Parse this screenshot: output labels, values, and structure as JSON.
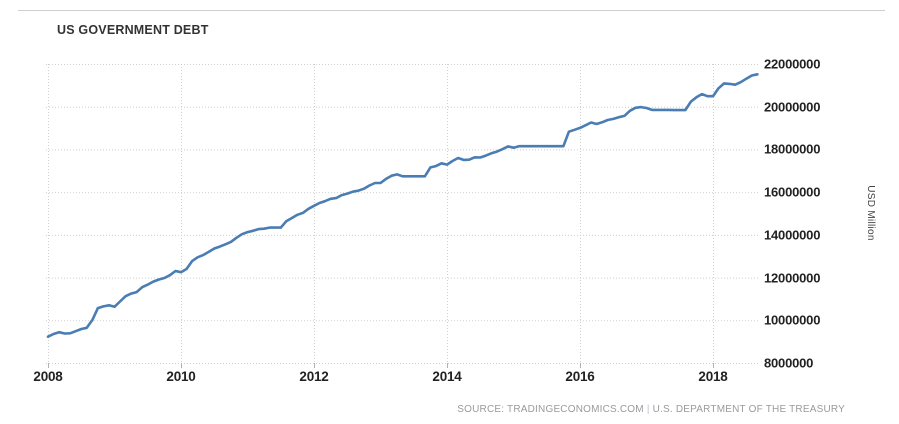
{
  "header": {
    "title": "US GOVERNMENT DEBT"
  },
  "footer": {
    "source_left": "SOURCE: TRADINGECONOMICS.COM",
    "separator": "|",
    "source_right": "U.S.  DEPARTMENT OF THE TREASURY"
  },
  "chart_data": {
    "type": "line",
    "title": "US GOVERNMENT DEBT",
    "xlabel": "",
    "ylabel": "USD Million",
    "grid": "dotted",
    "legend": "none",
    "line_color": "#4a7db3",
    "xlim": [
      2008,
      2018.72
    ],
    "ylim": [
      8000000,
      22000000
    ],
    "x_ticks": [
      2008,
      2010,
      2012,
      2014,
      2016,
      2018
    ],
    "y_ticks": [
      8000000,
      10000000,
      12000000,
      14000000,
      16000000,
      18000000,
      20000000,
      22000000
    ],
    "source": "SOURCE: TRADINGECONOMICS.COM | U.S. DEPARTMENT OF THE TREASURY",
    "series": [
      {
        "name": "US Government Debt",
        "unit": "USD Million",
        "points": [
          [
            2008.0,
            9230000
          ],
          [
            2008.083,
            9360000
          ],
          [
            2008.167,
            9440000
          ],
          [
            2008.25,
            9380000
          ],
          [
            2008.333,
            9390000
          ],
          [
            2008.417,
            9490000
          ],
          [
            2008.5,
            9590000
          ],
          [
            2008.583,
            9650000
          ],
          [
            2008.667,
            10020000
          ],
          [
            2008.75,
            10570000
          ],
          [
            2008.833,
            10650000
          ],
          [
            2008.917,
            10700000
          ],
          [
            2009.0,
            10630000
          ],
          [
            2009.083,
            10880000
          ],
          [
            2009.167,
            11130000
          ],
          [
            2009.25,
            11250000
          ],
          [
            2009.333,
            11320000
          ],
          [
            2009.417,
            11550000
          ],
          [
            2009.5,
            11670000
          ],
          [
            2009.583,
            11810000
          ],
          [
            2009.667,
            11910000
          ],
          [
            2009.75,
            11980000
          ],
          [
            2009.833,
            12110000
          ],
          [
            2009.917,
            12310000
          ],
          [
            2010.0,
            12250000
          ],
          [
            2010.083,
            12400000
          ],
          [
            2010.167,
            12770000
          ],
          [
            2010.25,
            12950000
          ],
          [
            2010.333,
            13050000
          ],
          [
            2010.417,
            13200000
          ],
          [
            2010.5,
            13360000
          ],
          [
            2010.583,
            13450000
          ],
          [
            2010.667,
            13560000
          ],
          [
            2010.75,
            13670000
          ],
          [
            2010.833,
            13860000
          ],
          [
            2010.917,
            14030000
          ],
          [
            2011.0,
            14130000
          ],
          [
            2011.083,
            14190000
          ],
          [
            2011.167,
            14270000
          ],
          [
            2011.25,
            14290000
          ],
          [
            2011.333,
            14340000
          ],
          [
            2011.417,
            14340000
          ],
          [
            2011.5,
            14340000
          ],
          [
            2011.583,
            14640000
          ],
          [
            2011.667,
            14790000
          ],
          [
            2011.75,
            14940000
          ],
          [
            2011.833,
            15030000
          ],
          [
            2011.917,
            15220000
          ],
          [
            2012.0,
            15360000
          ],
          [
            2012.083,
            15490000
          ],
          [
            2012.167,
            15580000
          ],
          [
            2012.25,
            15690000
          ],
          [
            2012.333,
            15720000
          ],
          [
            2012.417,
            15860000
          ],
          [
            2012.5,
            15930000
          ],
          [
            2012.583,
            16020000
          ],
          [
            2012.667,
            16070000
          ],
          [
            2012.75,
            16160000
          ],
          [
            2012.833,
            16310000
          ],
          [
            2012.917,
            16430000
          ],
          [
            2013.0,
            16430000
          ],
          [
            2013.083,
            16620000
          ],
          [
            2013.167,
            16770000
          ],
          [
            2013.25,
            16830000
          ],
          [
            2013.333,
            16740000
          ],
          [
            2013.417,
            16740000
          ],
          [
            2013.5,
            16740000
          ],
          [
            2013.583,
            16740000
          ],
          [
            2013.667,
            16740000
          ],
          [
            2013.75,
            17160000
          ],
          [
            2013.833,
            17220000
          ],
          [
            2013.917,
            17350000
          ],
          [
            2014.0,
            17290000
          ],
          [
            2014.083,
            17460000
          ],
          [
            2014.167,
            17600000
          ],
          [
            2014.25,
            17510000
          ],
          [
            2014.333,
            17520000
          ],
          [
            2014.417,
            17630000
          ],
          [
            2014.5,
            17620000
          ],
          [
            2014.583,
            17710000
          ],
          [
            2014.667,
            17820000
          ],
          [
            2014.75,
            17900000
          ],
          [
            2014.833,
            18010000
          ],
          [
            2014.917,
            18140000
          ],
          [
            2015.0,
            18080000
          ],
          [
            2015.083,
            18150000
          ],
          [
            2015.167,
            18150000
          ],
          [
            2015.25,
            18150000
          ],
          [
            2015.333,
            18150000
          ],
          [
            2015.417,
            18150000
          ],
          [
            2015.5,
            18150000
          ],
          [
            2015.583,
            18150000
          ],
          [
            2015.667,
            18150000
          ],
          [
            2015.75,
            18150000
          ],
          [
            2015.833,
            18830000
          ],
          [
            2015.917,
            18920000
          ],
          [
            2016.0,
            19010000
          ],
          [
            2016.083,
            19130000
          ],
          [
            2016.167,
            19260000
          ],
          [
            2016.25,
            19190000
          ],
          [
            2016.333,
            19270000
          ],
          [
            2016.417,
            19380000
          ],
          [
            2016.5,
            19430000
          ],
          [
            2016.583,
            19510000
          ],
          [
            2016.667,
            19570000
          ],
          [
            2016.75,
            19810000
          ],
          [
            2016.833,
            19950000
          ],
          [
            2016.917,
            19980000
          ],
          [
            2017.0,
            19940000
          ],
          [
            2017.083,
            19850000
          ],
          [
            2017.167,
            19850000
          ],
          [
            2017.25,
            19850000
          ],
          [
            2017.333,
            19850000
          ],
          [
            2017.417,
            19840000
          ],
          [
            2017.5,
            19840000
          ],
          [
            2017.583,
            19840000
          ],
          [
            2017.667,
            20240000
          ],
          [
            2017.75,
            20440000
          ],
          [
            2017.833,
            20590000
          ],
          [
            2017.917,
            20490000
          ],
          [
            2018.0,
            20490000
          ],
          [
            2018.083,
            20860000
          ],
          [
            2018.167,
            21090000
          ],
          [
            2018.25,
            21070000
          ],
          [
            2018.333,
            21030000
          ],
          [
            2018.417,
            21150000
          ],
          [
            2018.5,
            21310000
          ],
          [
            2018.583,
            21460000
          ],
          [
            2018.667,
            21520000
          ]
        ]
      }
    ]
  }
}
